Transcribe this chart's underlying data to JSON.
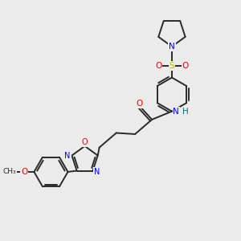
{
  "bg_color": "#ebebeb",
  "bond_color": "#2a2a2a",
  "atom_colors": {
    "N": "#0000ee",
    "O": "#ee0000",
    "S": "#bbbb00",
    "H": "#007070",
    "C": "#2a2a2a"
  }
}
